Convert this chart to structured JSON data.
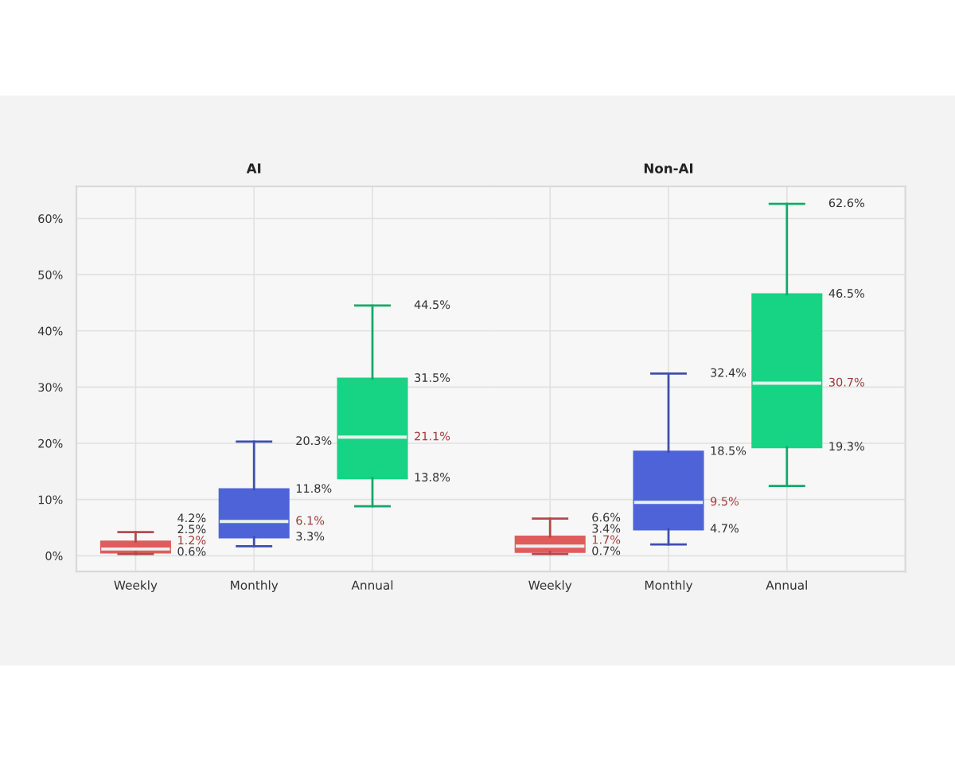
{
  "chart_data": [
    {
      "type": "box",
      "title": "AI",
      "categories": [
        "Weekly",
        "Monthly",
        "Annual"
      ],
      "boxes": [
        {
          "low": 0.3,
          "q1": 0.6,
          "median": 1.2,
          "q3": 2.5,
          "high": 4.2
        },
        {
          "low": 1.7,
          "q1": 3.3,
          "median": 6.1,
          "q3": 11.8,
          "high": 20.3
        },
        {
          "low": 8.8,
          "q1": 13.8,
          "median": 21.1,
          "q3": 31.5,
          "high": 44.5
        }
      ],
      "value_labels": [
        [
          null,
          "0.6%",
          "1.2%",
          "2.5%",
          "4.2%"
        ],
        [
          null,
          "3.3%",
          "6.1%",
          "11.8%",
          "20.3%"
        ],
        [
          null,
          "13.8%",
          "21.1%",
          "31.5%",
          "44.5%"
        ]
      ],
      "colors": [
        "#e05c5c",
        "#4f63d9",
        "#17d384"
      ],
      "ylim": [
        -2.8,
        65.7
      ],
      "yticks": [
        {
          "value": 0,
          "label": "0%"
        },
        {
          "value": 10,
          "label": "10%"
        },
        {
          "value": 20,
          "label": "20%"
        },
        {
          "value": 30,
          "label": "30%"
        },
        {
          "value": 40,
          "label": "40%"
        },
        {
          "value": 50,
          "label": "50%"
        },
        {
          "value": 60,
          "label": "60%"
        }
      ],
      "grid": true
    },
    {
      "type": "box",
      "title": "Non-AI",
      "categories": [
        "Weekly",
        "Monthly",
        "Annual"
      ],
      "boxes": [
        {
          "low": 0.3,
          "q1": 0.7,
          "median": 1.7,
          "q3": 3.4,
          "high": 6.6
        },
        {
          "low": 2.0,
          "q1": 4.7,
          "median": 9.5,
          "q3": 18.5,
          "high": 32.4
        },
        {
          "low": 12.4,
          "q1": 19.3,
          "median": 30.7,
          "q3": 46.5,
          "high": 62.6
        }
      ],
      "value_labels": [
        [
          null,
          "0.7%",
          "1.7%",
          "3.4%",
          "6.6%"
        ],
        [
          null,
          "4.7%",
          "9.5%",
          "18.5%",
          "32.4%"
        ],
        [
          null,
          "19.3%",
          "30.7%",
          "46.5%",
          "62.6%"
        ]
      ],
      "colors": [
        "#e05c5c",
        "#4f63d9",
        "#17d384"
      ],
      "ylim": [
        -2.8,
        65.7
      ],
      "yticks": [
        {
          "value": 0,
          "label": null
        },
        {
          "value": 10,
          "label": null
        },
        {
          "value": 20,
          "label": null
        },
        {
          "value": 30,
          "label": null
        },
        {
          "value": 40,
          "label": null
        },
        {
          "value": 50,
          "label": null
        },
        {
          "value": 60,
          "label": null
        }
      ],
      "grid": true,
      "tick_labels": "x"
    }
  ]
}
